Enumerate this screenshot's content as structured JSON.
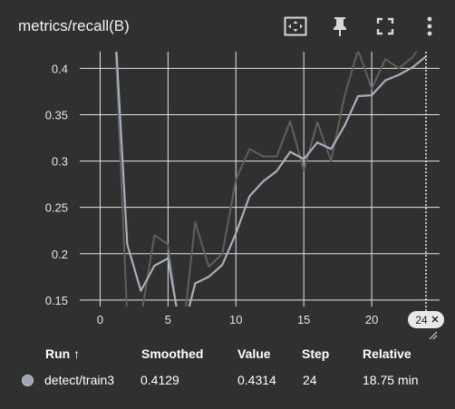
{
  "card": {
    "title": "metrics/recall(B)"
  },
  "toolbar": {
    "fit_icon": "fit-domain-icon",
    "pin_icon": "pin-icon",
    "fullscreen_icon": "fullscreen-icon",
    "more_icon": "more-vert-icon"
  },
  "chart_data": {
    "type": "line",
    "title": "metrics/recall(B)",
    "xlabel": "",
    "ylabel": "",
    "xlim": [
      -1.5,
      25
    ],
    "ylim": [
      0.143,
      0.418
    ],
    "x_ticks": [
      0,
      5,
      10,
      15,
      20
    ],
    "y_ticks": [
      0.15,
      0.2,
      0.25,
      0.3,
      0.35,
      0.4
    ],
    "y_tick_labels": [
      "0.15",
      "0.2",
      "0.25",
      "0.3",
      "0.35",
      "0.4"
    ],
    "grid": true,
    "hover_x_label": "24",
    "series": [
      {
        "name": "detect/train3",
        "style": "raw",
        "color": "#5f5f5f",
        "x": [
          1,
          2,
          3,
          4,
          5,
          6,
          7,
          8,
          9,
          10,
          11,
          12,
          13,
          14,
          15,
          16,
          17,
          18,
          19,
          20,
          21,
          22,
          23,
          24
        ],
        "y": [
          0.47,
          0.13,
          0.13,
          0.22,
          0.21,
          0.1,
          0.234,
          0.186,
          0.2,
          0.28,
          0.313,
          0.305,
          0.305,
          0.343,
          0.29,
          0.342,
          0.3,
          0.37,
          0.42,
          0.378,
          0.41,
          0.4,
          0.412,
          0.4314
        ]
      },
      {
        "name": "detect/train3",
        "style": "smoothed",
        "color": "#a6b0bb",
        "x": [
          1,
          2,
          3,
          4,
          5,
          6,
          7,
          8,
          9,
          10,
          11,
          12,
          13,
          14,
          15,
          16,
          17,
          18,
          19,
          20,
          21,
          22,
          23,
          24
        ],
        "y": [
          0.47,
          0.21,
          0.16,
          0.187,
          0.195,
          0.11,
          0.168,
          0.175,
          0.188,
          0.222,
          0.262,
          0.278,
          0.289,
          0.31,
          0.302,
          0.32,
          0.313,
          0.338,
          0.37,
          0.371,
          0.387,
          0.393,
          0.401,
          0.4129
        ]
      }
    ]
  },
  "table": {
    "headers": {
      "run": "Run ↑",
      "smoothed": "Smoothed",
      "value": "Value",
      "step": "Step",
      "relative": "Relative"
    },
    "row": {
      "run": "detect/train3",
      "smoothed": "0.4129",
      "value": "0.4314",
      "step": "24",
      "relative": "18.75 min",
      "color": "#9ea7b3"
    }
  }
}
